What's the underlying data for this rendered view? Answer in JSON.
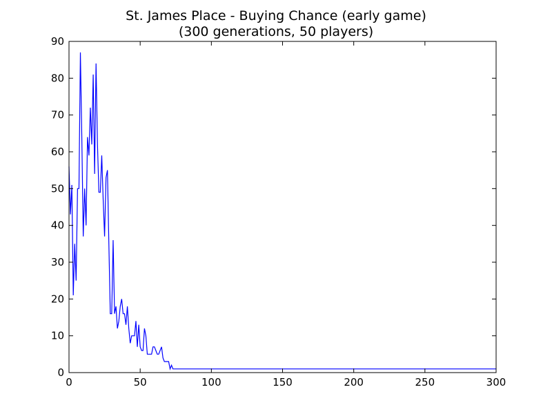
{
  "chart_data": {
    "type": "line",
    "title": "St. James Place - Buying Chance (early game)",
    "subtitle": "(300 generations, 50 players)",
    "xlabel": "",
    "ylabel": "",
    "xlim": [
      0,
      300
    ],
    "ylim": [
      0,
      90
    ],
    "xticks": [
      "0",
      "50",
      "100",
      "150",
      "200",
      "250",
      "300"
    ],
    "yticks": [
      "0",
      "10",
      "20",
      "30",
      "40",
      "50",
      "60",
      "70",
      "80",
      "90"
    ],
    "grid": false,
    "legend": "none",
    "series": [
      {
        "color": "#0000ff",
        "x": [
          0,
          1,
          2,
          3,
          4,
          5,
          6,
          7,
          8,
          9,
          10,
          11,
          12,
          13,
          14,
          15,
          16,
          17,
          18,
          19,
          20,
          21,
          22,
          23,
          24,
          25,
          26,
          27,
          28,
          29,
          30,
          31,
          32,
          33,
          34,
          35,
          36,
          37,
          38,
          39,
          40,
          41,
          42,
          43,
          44,
          45,
          46,
          47,
          48,
          49,
          50,
          51,
          52,
          53,
          54,
          55,
          56,
          57,
          58,
          59,
          60,
          61,
          62,
          63,
          64,
          65,
          66,
          67,
          68,
          69,
          70,
          71,
          72,
          73,
          74,
          75,
          300
        ],
        "y": [
          56,
          43,
          51,
          21,
          35,
          25,
          50,
          50,
          87,
          64,
          37,
          50,
          40,
          64,
          59,
          72,
          62,
          81,
          54,
          84,
          62,
          49,
          49,
          59,
          47,
          37,
          53,
          55,
          35,
          16,
          16,
          36,
          16,
          18,
          12,
          14,
          18,
          20,
          16,
          16,
          13,
          18,
          12,
          8,
          10,
          10,
          10,
          14,
          7,
          13,
          7,
          6,
          6,
          12,
          10,
          5,
          5,
          5,
          5,
          7,
          7,
          6,
          5,
          5,
          6,
          7,
          4,
          3,
          3,
          3,
          3,
          1,
          2,
          1,
          1,
          1,
          1
        ]
      }
    ]
  }
}
